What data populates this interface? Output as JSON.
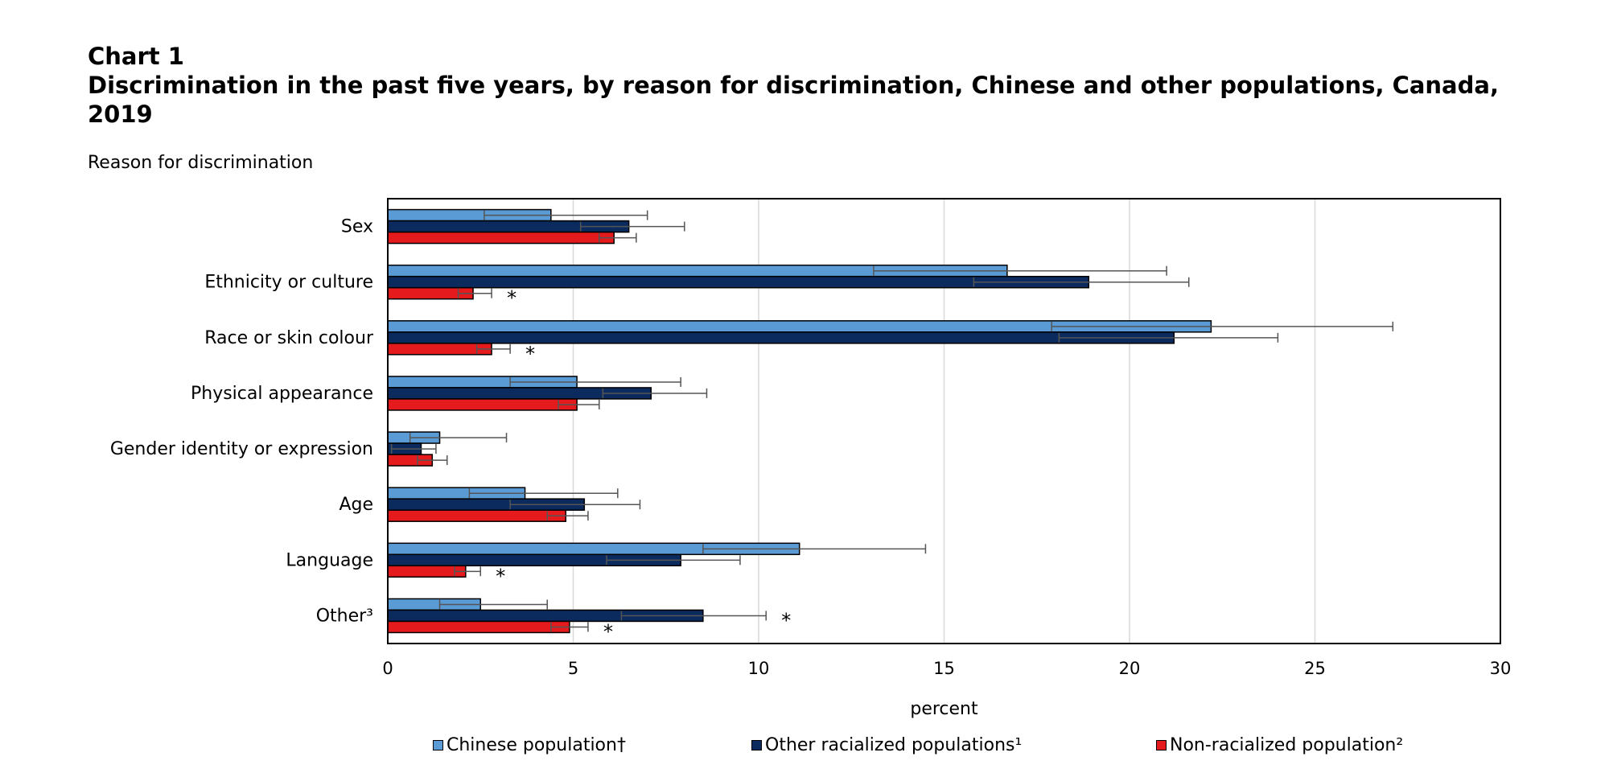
{
  "heading": {
    "chart_number": "Chart 1",
    "title": "Discrimination  in the past five years, by reason for discrimination,  Chinese and other populations, Canada, 2019"
  },
  "chart_data": {
    "type": "bar",
    "orientation": "horizontal",
    "title": "Discrimination  in the past five years, by reason for discrimination,  Chinese and other populations, Canada, 2019",
    "ylabel": "Reason for discrimination",
    "xlabel": "percent",
    "xlim": [
      0,
      30
    ],
    "xticks": [
      "0",
      "5",
      "10",
      "15",
      "20",
      "25",
      "30"
    ],
    "grid": "vertical",
    "legend_position": "bottom",
    "categories": [
      "Sex",
      "Ethnicity  or culture",
      "Race or skin colour",
      "Physical appearance",
      "Gender identity or expression",
      "Age",
      "Language",
      "Other³"
    ],
    "series": [
      {
        "name": "Chinese population†",
        "color": "#5b9bd5",
        "values": [
          4.4,
          16.7,
          22.2,
          5.1,
          1.4,
          3.7,
          11.1,
          2.5
        ],
        "ci_low": [
          2.6,
          13.1,
          17.9,
          3.3,
          0.6,
          2.2,
          8.5,
          1.4
        ],
        "ci_high": [
          7.0,
          21.0,
          27.1,
          7.9,
          3.2,
          6.2,
          14.5,
          4.3
        ]
      },
      {
        "name": "Other racialized populations¹",
        "color": "#0b2b5e",
        "values": [
          6.5,
          18.9,
          21.2,
          7.1,
          0.9,
          5.3,
          7.9,
          8.5
        ],
        "ci_low": [
          5.2,
          15.8,
          18.1,
          5.8,
          0.1,
          3.3,
          5.9,
          6.3
        ],
        "ci_high": [
          8.0,
          21.6,
          24.0,
          8.6,
          1.3,
          6.8,
          9.5,
          10.2
        ]
      },
      {
        "name": "Non-racialized population²",
        "color": "#e41a1c",
        "values": [
          6.1,
          2.3,
          2.8,
          5.1,
          1.2,
          4.8,
          2.1,
          4.9
        ],
        "ci_low": [
          5.7,
          1.9,
          2.4,
          4.6,
          0.8,
          4.3,
          1.8,
          4.4
        ],
        "ci_high": [
          6.7,
          2.8,
          3.3,
          5.7,
          1.6,
          5.4,
          2.5,
          5.4
        ]
      }
    ],
    "annotations": [
      {
        "category": "Ethnicity  or culture",
        "series": "Non-racialized population²",
        "text": "*"
      },
      {
        "category": "Race or skin colour",
        "series": "Non-racialized population²",
        "text": "*"
      },
      {
        "category": "Language",
        "series": "Non-racialized population²",
        "text": "*"
      },
      {
        "category": "Other³",
        "series": "Other racialized populations¹",
        "text": "*"
      },
      {
        "category": "Other³",
        "series": "Non-racialized population²",
        "text": "*"
      }
    ]
  }
}
